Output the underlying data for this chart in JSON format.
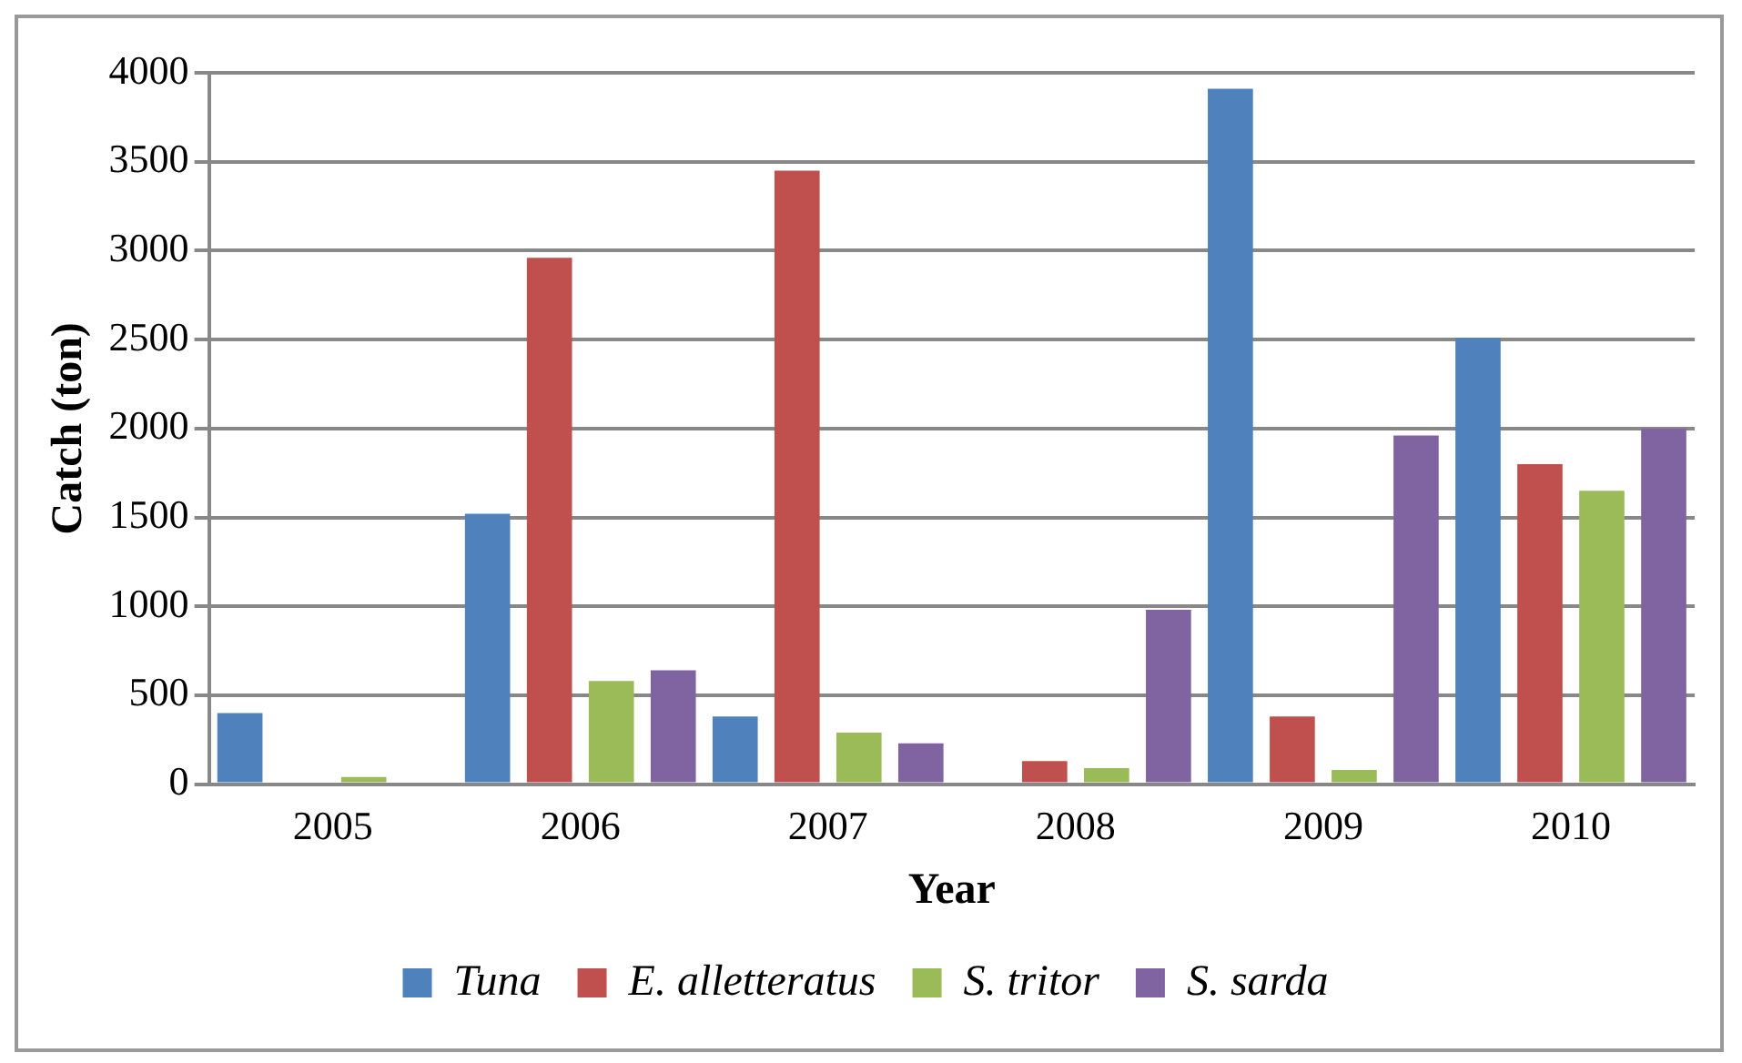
{
  "chart_data": {
    "type": "bar",
    "xlabel": "Year",
    "ylabel": "Catch (ton)",
    "categories": [
      "2005",
      "2006",
      "2007",
      "2008",
      "2009",
      "2010"
    ],
    "series": [
      {
        "name": "Tuna",
        "color": "#4f81bd",
        "values": [
          400,
          1520,
          380,
          0,
          3910,
          2510
        ]
      },
      {
        "name": "E. alletteratus",
        "color": "#c0504d",
        "values": [
          0,
          2960,
          3450,
          130,
          380,
          1800
        ]
      },
      {
        "name": "S. tritor",
        "color": "#9bbb59",
        "values": [
          40,
          580,
          290,
          90,
          80,
          1650
        ]
      },
      {
        "name": "S. sarda",
        "color": "#8064a2",
        "values": [
          0,
          640,
          230,
          980,
          1960,
          2000
        ]
      }
    ],
    "ylim": [
      0,
      4000
    ],
    "yticks": [
      0,
      500,
      1000,
      1500,
      2000,
      2500,
      3000,
      3500,
      4000
    ],
    "grid": "y",
    "legend": "bottom"
  }
}
